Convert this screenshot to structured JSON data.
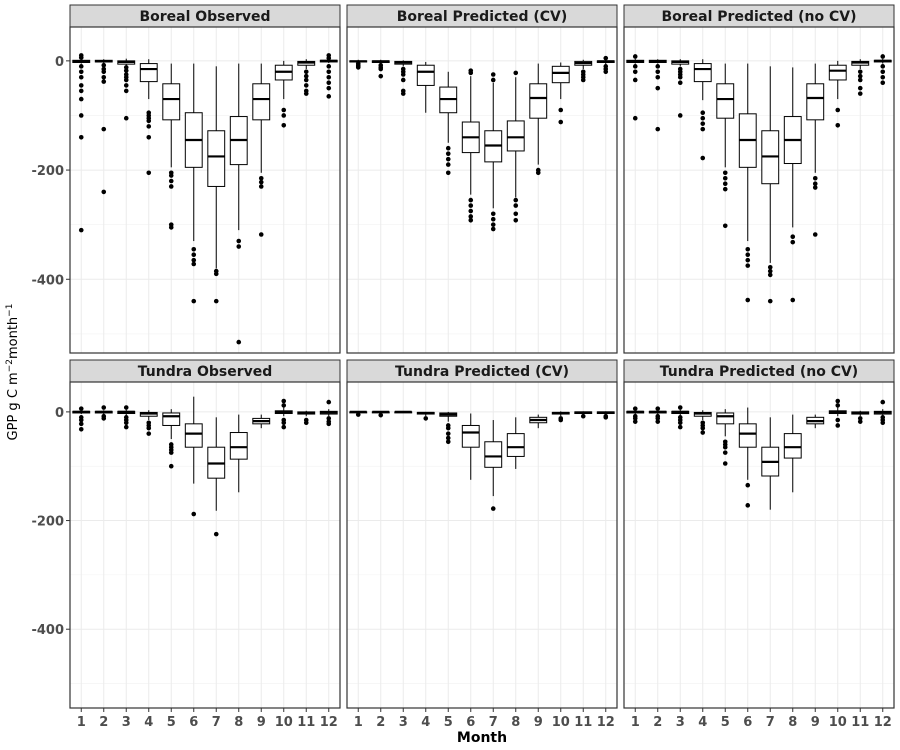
{
  "chart_data": {
    "type": "boxplot",
    "xlabel": "Month",
    "ylabel": "GPP g C m",
    "ylabel_parts": {
      "main": "GPP g C m",
      "sup1": "−2",
      "mid": "month",
      "sup2": "−1"
    },
    "categories": [
      "1",
      "2",
      "3",
      "4",
      "5",
      "6",
      "7",
      "8",
      "9",
      "10",
      "11",
      "12"
    ],
    "yticks": [
      0,
      -200,
      -400
    ],
    "ytick_labels": [
      "0",
      "-200",
      "-400"
    ],
    "rows": [
      {
        "ylim": [
          -535,
          62
        ]
      },
      {
        "ylim": [
          -545,
          55
        ]
      }
    ],
    "panels": [
      {
        "title": "Boreal Observed",
        "row": 0,
        "col": 0,
        "boxes": [
          {
            "q1": -3,
            "med": -1,
            "q3": 1,
            "lo": -5,
            "hi": 4,
            "out": [
              10,
              6,
              -10,
              -20,
              -30,
              -45,
              -55,
              -70,
              -100,
              -140,
              -310
            ]
          },
          {
            "q1": -2,
            "med": -1,
            "q3": 1,
            "lo": -4,
            "hi": 3,
            "out": [
              -8,
              -15,
              -20,
              -30,
              -38,
              -125,
              -240
            ]
          },
          {
            "q1": -6,
            "med": -2,
            "q3": 0,
            "lo": -10,
            "hi": 4,
            "out": [
              -12,
              -18,
              -25,
              -30,
              -35,
              -45,
              -55,
              -105
            ]
          },
          {
            "q1": -38,
            "med": -15,
            "q3": -5,
            "lo": -70,
            "hi": 3,
            "out": [
              -95,
              -100,
              -105,
              -110,
              -120,
              -140,
              -205
            ]
          },
          {
            "q1": -108,
            "med": -70,
            "q3": -42,
            "lo": -195,
            "hi": -5,
            "out": [
              -205,
              -210,
              -220,
              -230,
              -300,
              -305
            ]
          },
          {
            "q1": -195,
            "med": -145,
            "q3": -95,
            "lo": -330,
            "hi": -5,
            "out": [
              -345,
              -355,
              -365,
              -372,
              -440
            ]
          },
          {
            "q1": -230,
            "med": -175,
            "q3": -128,
            "lo": -380,
            "hi": -10,
            "out": [
              -385,
              -390,
              -440
            ]
          },
          {
            "q1": -190,
            "med": -145,
            "q3": -102,
            "lo": -310,
            "hi": -5,
            "out": [
              -330,
              -340,
              -515
            ]
          },
          {
            "q1": -108,
            "med": -70,
            "q3": -42,
            "lo": -205,
            "hi": -5,
            "out": [
              -215,
              -222,
              -230,
              -318
            ]
          },
          {
            "q1": -35,
            "med": -20,
            "q3": -8,
            "lo": -70,
            "hi": 0,
            "out": [
              -90,
              -100,
              -118
            ]
          },
          {
            "q1": -8,
            "med": -3,
            "q3": -1,
            "lo": -15,
            "hi": 3,
            "out": [
              -20,
              -28,
              -35,
              -45,
              -55,
              -60
            ]
          },
          {
            "q1": -2,
            "med": 0,
            "q3": 1,
            "lo": -4,
            "hi": 4,
            "out": [
              10,
              5,
              -10,
              -20,
              -30,
              -40,
              -50,
              -65
            ]
          }
        ]
      },
      {
        "title": "Boreal Predicted (CV)",
        "row": 0,
        "col": 1,
        "boxes": [
          {
            "q1": -2,
            "med": -1,
            "q3": 0,
            "lo": -3,
            "hi": 2,
            "out": [
              -5,
              -8,
              -10,
              -12
            ]
          },
          {
            "q1": -3,
            "med": -1,
            "q3": 0,
            "lo": -5,
            "hi": 2,
            "out": [
              -8,
              -12,
              -15,
              -28
            ]
          },
          {
            "q1": -6,
            "med": -3,
            "q3": -1,
            "lo": -10,
            "hi": 1,
            "out": [
              -15,
              -20,
              -25,
              -35,
              -55,
              -60
            ]
          },
          {
            "q1": -45,
            "med": -20,
            "q3": -8,
            "lo": -95,
            "hi": -2,
            "out": []
          },
          {
            "q1": -95,
            "med": -70,
            "q3": -48,
            "lo": -150,
            "hi": -20,
            "out": [
              -160,
              -170,
              -180,
              -190,
              -205
            ]
          },
          {
            "q1": -168,
            "med": -140,
            "q3": -112,
            "lo": -245,
            "hi": -28,
            "out": [
              -18,
              -22,
              -255,
              -265,
              -275,
              -285,
              -292
            ]
          },
          {
            "q1": -185,
            "med": -155,
            "q3": -128,
            "lo": -270,
            "hi": -40,
            "out": [
              -25,
              -35,
              -280,
              -290,
              -300,
              -308
            ]
          },
          {
            "q1": -165,
            "med": -140,
            "q3": -110,
            "lo": -250,
            "hi": -30,
            "out": [
              -22,
              -255,
              -265,
              -280,
              -292
            ]
          },
          {
            "q1": -105,
            "med": -68,
            "q3": -42,
            "lo": -190,
            "hi": -5,
            "out": [
              -200,
              -205
            ]
          },
          {
            "q1": -40,
            "med": -22,
            "q3": -10,
            "lo": -70,
            "hi": -3,
            "out": [
              -90,
              -112
            ]
          },
          {
            "q1": -8,
            "med": -4,
            "q3": -1,
            "lo": -15,
            "hi": 2,
            "out": [
              -20,
              -25,
              -30,
              -35
            ]
          },
          {
            "q1": -3,
            "med": -1,
            "q3": 0,
            "lo": -6,
            "hi": 3,
            "out": [
              5,
              -10,
              -15,
              -20
            ]
          }
        ]
      },
      {
        "title": "Boreal Predicted (no CV)",
        "row": 0,
        "col": 2,
        "boxes": [
          {
            "q1": -3,
            "med": -1,
            "q3": 1,
            "lo": -5,
            "hi": 4,
            "out": [
              8,
              -10,
              -20,
              -35,
              -105
            ]
          },
          {
            "q1": -3,
            "med": -1,
            "q3": 1,
            "lo": -5,
            "hi": 3,
            "out": [
              -10,
              -20,
              -30,
              -50,
              -125
            ]
          },
          {
            "q1": -6,
            "med": -2,
            "q3": 0,
            "lo": -10,
            "hi": 3,
            "out": [
              -15,
              -20,
              -25,
              -30,
              -40,
              -100
            ]
          },
          {
            "q1": -38,
            "med": -15,
            "q3": -5,
            "lo": -72,
            "hi": 3,
            "out": [
              -95,
              -105,
              -115,
              -125,
              -178
            ]
          },
          {
            "q1": -105,
            "med": -70,
            "q3": -42,
            "lo": -195,
            "hi": -5,
            "out": [
              -205,
              -215,
              -225,
              -235,
              -302
            ]
          },
          {
            "q1": -195,
            "med": -145,
            "q3": -97,
            "lo": -330,
            "hi": -5,
            "out": [
              -345,
              -355,
              -365,
              -375,
              -438
            ]
          },
          {
            "q1": -225,
            "med": -175,
            "q3": -128,
            "lo": -370,
            "hi": -10,
            "out": [
              -378,
              -385,
              -392,
              -440
            ]
          },
          {
            "q1": -188,
            "med": -145,
            "q3": -102,
            "lo": -305,
            "hi": -12,
            "out": [
              -322,
              -332,
              -438
            ]
          },
          {
            "q1": -108,
            "med": -68,
            "q3": -42,
            "lo": -205,
            "hi": -5,
            "out": [
              -215,
              -225,
              -232,
              -318
            ]
          },
          {
            "q1": -35,
            "med": -18,
            "q3": -8,
            "lo": -70,
            "hi": 0,
            "out": [
              -90,
              -118
            ]
          },
          {
            "q1": -8,
            "med": -3,
            "q3": -1,
            "lo": -15,
            "hi": 3,
            "out": [
              -20,
              -28,
              -35,
              -50,
              -60
            ]
          },
          {
            "q1": -2,
            "med": 0,
            "q3": 1,
            "lo": -5,
            "hi": 4,
            "out": [
              8,
              -10,
              -20,
              -30,
              -40
            ]
          }
        ]
      },
      {
        "title": "Tundra Observed",
        "row": 1,
        "col": 0,
        "boxes": [
          {
            "q1": -2,
            "med": 0,
            "q3": 1,
            "lo": -4,
            "hi": 3,
            "out": [
              6,
              -10,
              -15,
              -22,
              -32
            ]
          },
          {
            "q1": -2,
            "med": 0,
            "q3": 1,
            "lo": -4,
            "hi": 3,
            "out": [
              8,
              -8,
              -12
            ]
          },
          {
            "q1": -3,
            "med": 0,
            "q3": 1,
            "lo": -6,
            "hi": 4,
            "out": [
              8,
              -10,
              -15,
              -20,
              -28
            ]
          },
          {
            "q1": -8,
            "med": -3,
            "q3": -1,
            "lo": -15,
            "hi": 3,
            "out": [
              -20,
              -25,
              -30,
              -40
            ]
          },
          {
            "q1": -25,
            "med": -8,
            "q3": -2,
            "lo": -50,
            "hi": 5,
            "out": [
              -60,
              -65,
              -70,
              -75,
              -100
            ]
          },
          {
            "q1": -65,
            "med": -40,
            "q3": -22,
            "lo": -132,
            "hi": 28,
            "out": [
              -188
            ]
          },
          {
            "q1": -122,
            "med": -95,
            "q3": -65,
            "lo": -182,
            "hi": -10,
            "out": [
              -225
            ]
          },
          {
            "q1": -87,
            "med": -65,
            "q3": -38,
            "lo": -148,
            "hi": -5,
            "out": []
          },
          {
            "q1": -22,
            "med": -17,
            "q3": -12,
            "lo": -30,
            "hi": -5,
            "out": []
          },
          {
            "q1": -3,
            "med": 0,
            "q3": 2,
            "lo": -8,
            "hi": 8,
            "out": [
              20,
              12,
              -15,
              -20,
              -28
            ]
          },
          {
            "q1": -4,
            "med": -2,
            "q3": 0,
            "lo": -8,
            "hi": 2,
            "out": [
              -15,
              -20
            ]
          },
          {
            "q1": -4,
            "med": -1,
            "q3": 1,
            "lo": -8,
            "hi": 5,
            "out": [
              18,
              -12,
              -18,
              -22
            ]
          }
        ]
      },
      {
        "title": "Tundra Predicted (CV)",
        "row": 1,
        "col": 1,
        "boxes": [
          {
            "q1": -1,
            "med": 0,
            "q3": 0,
            "lo": -2,
            "hi": 1,
            "out": [
              -5
            ]
          },
          {
            "q1": -1,
            "med": 0,
            "q3": 0,
            "lo": -2,
            "hi": 1,
            "out": [
              -6
            ]
          },
          {
            "q1": -1,
            "med": 0,
            "q3": 0,
            "lo": -2,
            "hi": 1,
            "out": []
          },
          {
            "q1": -4,
            "med": -2,
            "q3": -1,
            "lo": -8,
            "hi": 0,
            "out": [
              -12
            ]
          },
          {
            "q1": -8,
            "med": -5,
            "q3": -2,
            "lo": -18,
            "hi": 0,
            "out": [
              -25,
              -30,
              -40,
              -48,
              -55
            ]
          },
          {
            "q1": -65,
            "med": -38,
            "q3": -25,
            "lo": -125,
            "hi": -3,
            "out": []
          },
          {
            "q1": -102,
            "med": -82,
            "q3": -55,
            "lo": -155,
            "hi": -15,
            "out": [
              -178
            ]
          },
          {
            "q1": -82,
            "med": -65,
            "q3": -40,
            "lo": -105,
            "hi": -10,
            "out": []
          },
          {
            "q1": -20,
            "med": -15,
            "q3": -10,
            "lo": -30,
            "hi": -5,
            "out": []
          },
          {
            "q1": -4,
            "med": -2,
            "q3": -1,
            "lo": -8,
            "hi": 1,
            "out": [
              -12,
              -15
            ]
          },
          {
            "q1": -3,
            "med": -1,
            "q3": 0,
            "lo": -5,
            "hi": 1,
            "out": [
              -8
            ]
          },
          {
            "q1": -3,
            "med": -1,
            "q3": 0,
            "lo": -5,
            "hi": 1,
            "out": [
              -8,
              -10
            ]
          }
        ]
      },
      {
        "title": "Tundra Predicted (no CV)",
        "row": 1,
        "col": 2,
        "boxes": [
          {
            "q1": -2,
            "med": 0,
            "q3": 1,
            "lo": -4,
            "hi": 3,
            "out": [
              6,
              -8,
              -12,
              -18
            ]
          },
          {
            "q1": -2,
            "med": 0,
            "q3": 1,
            "lo": -4,
            "hi": 3,
            "out": [
              6,
              -8,
              -12,
              -18
            ]
          },
          {
            "q1": -3,
            "med": 0,
            "q3": 1,
            "lo": -6,
            "hi": 4,
            "out": [
              8,
              -10,
              -15,
              -20,
              -28
            ]
          },
          {
            "q1": -8,
            "med": -3,
            "q3": -1,
            "lo": -15,
            "hi": 3,
            "out": [
              -20,
              -25,
              -30,
              -38
            ]
          },
          {
            "q1": -22,
            "med": -8,
            "q3": -2,
            "lo": -45,
            "hi": 5,
            "out": [
              -55,
              -60,
              -65,
              -75,
              -95
            ]
          },
          {
            "q1": -65,
            "med": -40,
            "q3": -22,
            "lo": -125,
            "hi": 8,
            "out": [
              -135,
              -172
            ]
          },
          {
            "q1": -118,
            "med": -92,
            "q3": -65,
            "lo": -180,
            "hi": -10,
            "out": []
          },
          {
            "q1": -85,
            "med": -65,
            "q3": -40,
            "lo": -148,
            "hi": -5,
            "out": []
          },
          {
            "q1": -22,
            "med": -17,
            "q3": -10,
            "lo": -30,
            "hi": -5,
            "out": []
          },
          {
            "q1": -3,
            "med": 0,
            "q3": 2,
            "lo": -8,
            "hi": 8,
            "out": [
              20,
              12,
              -15,
              -25
            ]
          },
          {
            "q1": -4,
            "med": -2,
            "q3": 0,
            "lo": -8,
            "hi": 2,
            "out": [
              -12,
              -18
            ]
          },
          {
            "q1": -4,
            "med": -1,
            "q3": 1,
            "lo": -8,
            "hi": 5,
            "out": [
              18,
              -10,
              -15,
              -20
            ]
          }
        ]
      }
    ]
  }
}
